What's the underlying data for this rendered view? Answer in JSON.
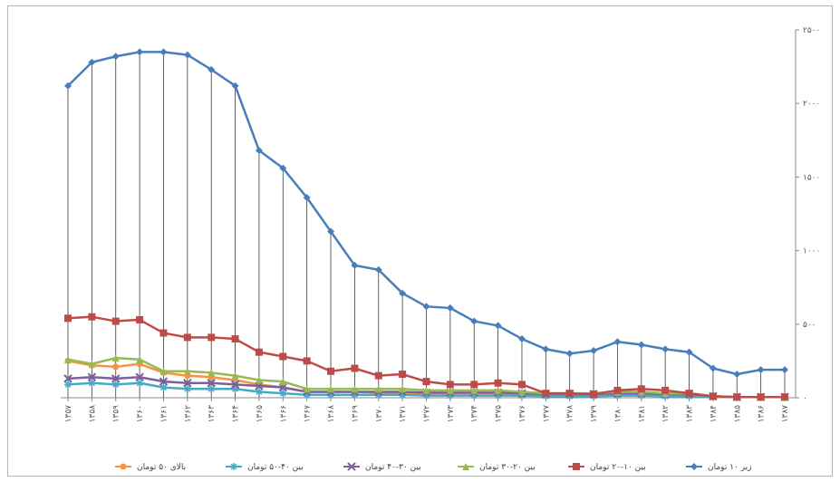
{
  "chart_data": {
    "type": "line",
    "title": "",
    "xlabel": "",
    "ylabel": "",
    "ylim": [
      0,
      2500
    ],
    "y_ticks": [
      "۲۵۰۰",
      "۲۰۰۰",
      "۱۵۰۰",
      "۱۰۰۰",
      "۵۰۰",
      "۰"
    ],
    "y_tick_values": [
      2500,
      2000,
      1500,
      1000,
      500,
      0
    ],
    "y_axis_side": "right",
    "grid": false,
    "drop_lines": true,
    "legend_position": "bottom",
    "categories": [
      "۱۳۵۷",
      "۱۳۵۸",
      "۱۳۵۹",
      "۱۳۶۰",
      "۱۳۶۱",
      "۱۳۶۲",
      "۱۳۶۳",
      "۱۳۶۴",
      "۱۳۶۵",
      "۱۳۶۶",
      "۱۳۶۷",
      "۱۳۶۸",
      "۱۳۶۹",
      "۱۳۷۰",
      "۱۳۷۱",
      "۱۳۷۲",
      "۱۳۷۳",
      "۱۳۷۴",
      "۱۳۷۵",
      "۱۳۷۶",
      "۱۳۷۷",
      "۱۳۷۸",
      "۱۳۷۹",
      "۱۳۸۰",
      "۱۳۸۱",
      "۱۳۸۲",
      "۱۳۸۳",
      "۱۳۸۴",
      "۱۳۸۵",
      "۱۳۸۶",
      "۱۳۸۷"
    ],
    "series": [
      {
        "name": "زیر ۱۰ تومان",
        "color": "#4a7ebb",
        "marker": "diamond",
        "values": [
          2120,
          2280,
          2320,
          2350,
          2350,
          2330,
          2230,
          2120,
          1680,
          1560,
          1360,
          1130,
          900,
          870,
          710,
          620,
          610,
          520,
          490,
          400,
          330,
          300,
          320,
          380,
          360,
          330,
          310,
          200,
          160,
          190,
          190
        ]
      },
      {
        "name": "بین ۱۰-۲۰ تومان",
        "color": "#be4b48",
        "marker": "square",
        "values": [
          540,
          550,
          520,
          530,
          440,
          410,
          410,
          400,
          310,
          280,
          250,
          180,
          200,
          150,
          160,
          110,
          90,
          90,
          100,
          90,
          30,
          30,
          25,
          50,
          60,
          50,
          30,
          10,
          5,
          5,
          5
        ]
      },
      {
        "name": "بین ۲۰-۳۰ تومان",
        "color": "#98b954",
        "marker": "triangle",
        "values": [
          260,
          230,
          270,
          260,
          180,
          180,
          170,
          150,
          120,
          110,
          60,
          60,
          60,
          60,
          60,
          50,
          50,
          50,
          50,
          40,
          30,
          30,
          30,
          40,
          40,
          30,
          30,
          10,
          5,
          5,
          5
        ]
      },
      {
        "name": "بین ۳۰-۴۰ تومان",
        "color": "#7d60a0",
        "marker": "x",
        "values": [
          130,
          140,
          130,
          140,
          110,
          100,
          100,
          90,
          80,
          70,
          40,
          40,
          40,
          40,
          40,
          35,
          35,
          35,
          35,
          30,
          25,
          25,
          25,
          30,
          30,
          25,
          25,
          10,
          5,
          5,
          5
        ]
      },
      {
        "name": "بین ۴۰-۵۰ تومان",
        "color": "#46aac5",
        "marker": "star",
        "values": [
          90,
          100,
          90,
          100,
          70,
          60,
          60,
          60,
          40,
          30,
          20,
          20,
          20,
          20,
          20,
          15,
          15,
          15,
          15,
          15,
          10,
          10,
          10,
          15,
          15,
          10,
          10,
          5,
          5,
          5,
          5
        ]
      },
      {
        "name": "بالای ۵۰ تومان",
        "color": "#f69240",
        "marker": "circle",
        "values": [
          250,
          220,
          210,
          230,
          170,
          150,
          140,
          120,
          90,
          70,
          40,
          40,
          40,
          35,
          35,
          30,
          30,
          30,
          30,
          25,
          15,
          15,
          15,
          20,
          20,
          15,
          15,
          5,
          5,
          5,
          5
        ]
      }
    ]
  }
}
